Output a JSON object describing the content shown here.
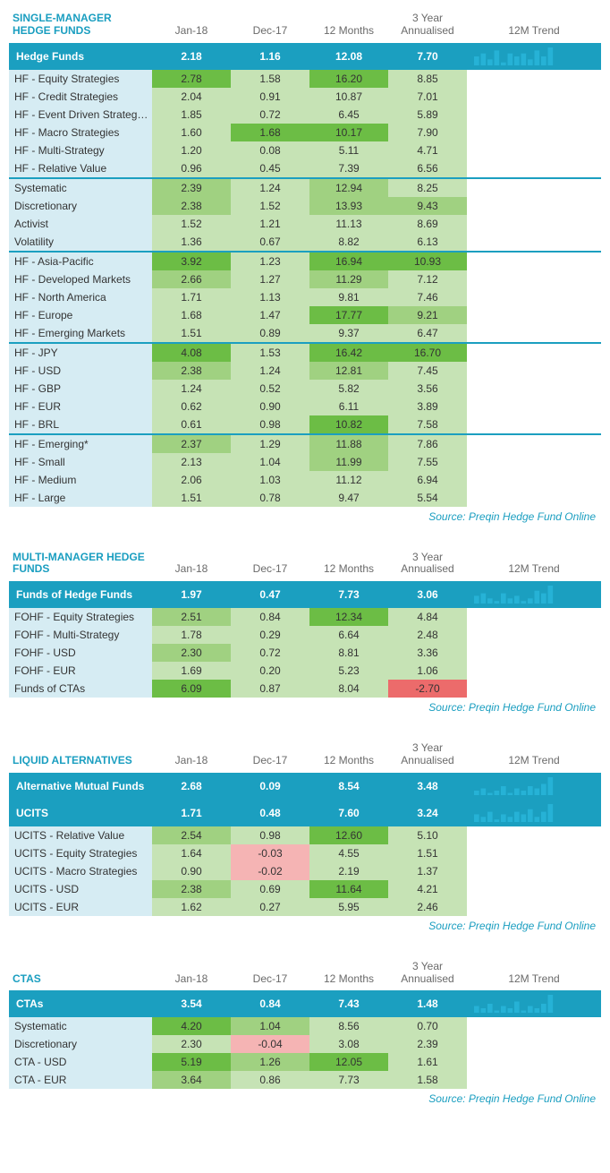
{
  "colors": {
    "accent": "#1b9fc0",
    "title": "#1a9ec0",
    "name_bg": "#d6ecf3",
    "g1": "#c6e3b5",
    "g2": "#a0d181",
    "g3": "#6cbd45",
    "r1": "#f5b4b4",
    "r2": "#ec6b6b",
    "spark": "#26b2d6"
  },
  "columns": [
    "Jan-18",
    "Dec-17",
    "12 Months",
    "3 Year\nAnnualised",
    "12M Trend"
  ],
  "source": "Source: Preqin Hedge Fund Online",
  "sections": [
    {
      "title": "SINGLE-MANAGER HEDGE FUNDS",
      "header": {
        "name": "Hedge Funds",
        "vals": [
          "2.18",
          "1.16",
          "12.08",
          "7.70"
        ],
        "spark": [
          3,
          4,
          2,
          5,
          1,
          4,
          3,
          4,
          2,
          5,
          3,
          6
        ]
      },
      "groups": [
        [
          {
            "name": "HF - Equity Strategies",
            "vals": [
              [
                "2.78",
                "g3"
              ],
              [
                "1.58",
                "g1"
              ],
              [
                "16.20",
                "g3"
              ],
              [
                "8.85",
                "g1"
              ]
            ]
          },
          {
            "name": "HF - Credit Strategies",
            "vals": [
              [
                "2.04",
                "g1"
              ],
              [
                "0.91",
                "g1"
              ],
              [
                "10.87",
                "g1"
              ],
              [
                "7.01",
                "g1"
              ]
            ]
          },
          {
            "name": "HF - Event Driven Strategies",
            "vals": [
              [
                "1.85",
                "g1"
              ],
              [
                "0.72",
                "g1"
              ],
              [
                "6.45",
                "g1"
              ],
              [
                "5.89",
                "g1"
              ]
            ]
          },
          {
            "name": "HF - Macro Strategies",
            "vals": [
              [
                "1.60",
                "g1"
              ],
              [
                "1.68",
                "g3"
              ],
              [
                "10.17",
                "g3"
              ],
              [
                "7.90",
                "g1"
              ]
            ]
          },
          {
            "name": "HF - Multi-Strategy",
            "vals": [
              [
                "1.20",
                "g1"
              ],
              [
                "0.08",
                "g1"
              ],
              [
                "5.11",
                "g1"
              ],
              [
                "4.71",
                "g1"
              ]
            ]
          },
          {
            "name": "HF - Relative Value",
            "vals": [
              [
                "0.96",
                "g1"
              ],
              [
                "0.45",
                "g1"
              ],
              [
                "7.39",
                "g1"
              ],
              [
                "6.56",
                "g1"
              ]
            ]
          }
        ],
        [
          {
            "name": "Systematic",
            "vals": [
              [
                "2.39",
                "g2"
              ],
              [
                "1.24",
                "g1"
              ],
              [
                "12.94",
                "g2"
              ],
              [
                "8.25",
                "g1"
              ]
            ]
          },
          {
            "name": "Discretionary",
            "vals": [
              [
                "2.38",
                "g2"
              ],
              [
                "1.52",
                "g1"
              ],
              [
                "13.93",
                "g2"
              ],
              [
                "9.43",
                "g2"
              ]
            ]
          },
          {
            "name": "Activist",
            "vals": [
              [
                "1.52",
                "g1"
              ],
              [
                "1.21",
                "g1"
              ],
              [
                "11.13",
                "g1"
              ],
              [
                "8.69",
                "g1"
              ]
            ]
          },
          {
            "name": "Volatility",
            "vals": [
              [
                "1.36",
                "g1"
              ],
              [
                "0.67",
                "g1"
              ],
              [
                "8.82",
                "g1"
              ],
              [
                "6.13",
                "g1"
              ]
            ]
          }
        ],
        [
          {
            "name": "HF - Asia-Pacific",
            "vals": [
              [
                "3.92",
                "g3"
              ],
              [
                "1.23",
                "g1"
              ],
              [
                "16.94",
                "g3"
              ],
              [
                "10.93",
                "g3"
              ]
            ]
          },
          {
            "name": "HF - Developed Markets",
            "vals": [
              [
                "2.66",
                "g2"
              ],
              [
                "1.27",
                "g1"
              ],
              [
                "11.29",
                "g2"
              ],
              [
                "7.12",
                "g1"
              ]
            ]
          },
          {
            "name": "HF - North America",
            "vals": [
              [
                "1.71",
                "g1"
              ],
              [
                "1.13",
                "g1"
              ],
              [
                "9.81",
                "g1"
              ],
              [
                "7.46",
                "g1"
              ]
            ]
          },
          {
            "name": "HF - Europe",
            "vals": [
              [
                "1.68",
                "g1"
              ],
              [
                "1.47",
                "g1"
              ],
              [
                "17.77",
                "g3"
              ],
              [
                "9.21",
                "g2"
              ]
            ]
          },
          {
            "name": "HF - Emerging Markets",
            "vals": [
              [
                "1.51",
                "g1"
              ],
              [
                "0.89",
                "g1"
              ],
              [
                "9.37",
                "g1"
              ],
              [
                "6.47",
                "g1"
              ]
            ]
          }
        ],
        [
          {
            "name": "HF - JPY",
            "vals": [
              [
                "4.08",
                "g3"
              ],
              [
                "1.53",
                "g1"
              ],
              [
                "16.42",
                "g3"
              ],
              [
                "16.70",
                "g3"
              ]
            ]
          },
          {
            "name": "HF - USD",
            "vals": [
              [
                "2.38",
                "g2"
              ],
              [
                "1.24",
                "g1"
              ],
              [
                "12.81",
                "g2"
              ],
              [
                "7.45",
                "g1"
              ]
            ]
          },
          {
            "name": "HF - GBP",
            "vals": [
              [
                "1.24",
                "g1"
              ],
              [
                "0.52",
                "g1"
              ],
              [
                "5.82",
                "g1"
              ],
              [
                "3.56",
                "g1"
              ]
            ]
          },
          {
            "name": "HF - EUR",
            "vals": [
              [
                "0.62",
                "g1"
              ],
              [
                "0.90",
                "g1"
              ],
              [
                "6.11",
                "g1"
              ],
              [
                "3.89",
                "g1"
              ]
            ]
          },
          {
            "name": "HF - BRL",
            "vals": [
              [
                "0.61",
                "g1"
              ],
              [
                "0.98",
                "g1"
              ],
              [
                "10.82",
                "g3"
              ],
              [
                "7.58",
                "g1"
              ]
            ]
          }
        ],
        [
          {
            "name": "HF - Emerging*",
            "vals": [
              [
                "2.37",
                "g2"
              ],
              [
                "1.29",
                "g1"
              ],
              [
                "11.88",
                "g2"
              ],
              [
                "7.86",
                "g1"
              ]
            ]
          },
          {
            "name": "HF - Small",
            "vals": [
              [
                "2.13",
                "g1"
              ],
              [
                "1.04",
                "g1"
              ],
              [
                "11.99",
                "g2"
              ],
              [
                "7.55",
                "g1"
              ]
            ]
          },
          {
            "name": "HF - Medium",
            "vals": [
              [
                "2.06",
                "g1"
              ],
              [
                "1.03",
                "g1"
              ],
              [
                "11.12",
                "g1"
              ],
              [
                "6.94",
                "g1"
              ]
            ]
          },
          {
            "name": "HF - Large",
            "vals": [
              [
                "1.51",
                "g1"
              ],
              [
                "0.78",
                "g1"
              ],
              [
                "9.47",
                "g1"
              ],
              [
                "5.54",
                "g1"
              ]
            ]
          }
        ]
      ]
    },
    {
      "title": "MULTI-MANAGER HEDGE FUNDS",
      "header": {
        "name": "Funds of Hedge Funds",
        "vals": [
          "1.97",
          "0.47",
          "7.73",
          "3.06"
        ],
        "spark": [
          3,
          4,
          2,
          1,
          4,
          2,
          3,
          1,
          2,
          5,
          4,
          7
        ]
      },
      "groups": [
        [
          {
            "name": "FOHF - Equity Strategies",
            "vals": [
              [
                "2.51",
                "g2"
              ],
              [
                "0.84",
                "g1"
              ],
              [
                "12.34",
                "g3"
              ],
              [
                "4.84",
                "g1"
              ]
            ]
          },
          {
            "name": "FOHF - Multi-Strategy",
            "vals": [
              [
                "1.78",
                "g1"
              ],
              [
                "0.29",
                "g1"
              ],
              [
                "6.64",
                "g1"
              ],
              [
                "2.48",
                "g1"
              ]
            ]
          },
          {
            "name": "FOHF - USD",
            "vals": [
              [
                "2.30",
                "g2"
              ],
              [
                "0.72",
                "g1"
              ],
              [
                "8.81",
                "g1"
              ],
              [
                "3.36",
                "g1"
              ]
            ]
          },
          {
            "name": "FOHF - EUR",
            "vals": [
              [
                "1.69",
                "g1"
              ],
              [
                "0.20",
                "g1"
              ],
              [
                "5.23",
                "g1"
              ],
              [
                "1.06",
                "g1"
              ]
            ]
          },
          {
            "name": "Funds of CTAs",
            "vals": [
              [
                "6.09",
                "g3"
              ],
              [
                "0.87",
                "g1"
              ],
              [
                "8.04",
                "g1"
              ],
              [
                "-2.70",
                "r2"
              ]
            ]
          }
        ]
      ]
    },
    {
      "title": "LIQUID ALTERNATIVES",
      "headers": [
        {
          "name": "Alternative Mutual Funds",
          "vals": [
            "2.68",
            "0.09",
            "8.54",
            "3.48"
          ],
          "spark": [
            2,
            3,
            1,
            2,
            4,
            1,
            3,
            2,
            4,
            3,
            5,
            8
          ]
        },
        {
          "name": "UCITS",
          "vals": [
            "1.71",
            "0.48",
            "7.60",
            "3.24"
          ],
          "spark": [
            3,
            2,
            4,
            1,
            3,
            2,
            4,
            3,
            5,
            2,
            4,
            7
          ]
        }
      ],
      "groups": [
        [
          {
            "name": "UCITS - Relative Value",
            "vals": [
              [
                "2.54",
                "g2"
              ],
              [
                "0.98",
                "g1"
              ],
              [
                "12.60",
                "g3"
              ],
              [
                "5.10",
                "g1"
              ]
            ]
          },
          {
            "name": "UCITS - Equity Strategies",
            "vals": [
              [
                "1.64",
                "g1"
              ],
              [
                "-0.03",
                "r1"
              ],
              [
                "4.55",
                "g1"
              ],
              [
                "1.51",
                "g1"
              ]
            ]
          },
          {
            "name": "UCITS - Macro Strategies",
            "vals": [
              [
                "0.90",
                "g1"
              ],
              [
                "-0.02",
                "r1"
              ],
              [
                "2.19",
                "g1"
              ],
              [
                "1.37",
                "g1"
              ]
            ]
          },
          {
            "name": "UCITS - USD",
            "vals": [
              [
                "2.38",
                "g2"
              ],
              [
                "0.69",
                "g1"
              ],
              [
                "11.64",
                "g3"
              ],
              [
                "4.21",
                "g1"
              ]
            ]
          },
          {
            "name": "UCITS - EUR",
            "vals": [
              [
                "1.62",
                "g1"
              ],
              [
                "0.27",
                "g1"
              ],
              [
                "5.95",
                "g1"
              ],
              [
                "2.46",
                "g1"
              ]
            ]
          }
        ]
      ]
    },
    {
      "title": "CTAS",
      "header": {
        "name": "CTAs",
        "vals": [
          "3.54",
          "0.84",
          "7.43",
          "1.48"
        ],
        "spark": [
          3,
          2,
          4,
          1,
          3,
          2,
          5,
          1,
          3,
          2,
          4,
          8
        ]
      },
      "groups": [
        [
          {
            "name": "Systematic",
            "vals": [
              [
                "4.20",
                "g3"
              ],
              [
                "1.04",
                "g2"
              ],
              [
                "8.56",
                "g1"
              ],
              [
                "0.70",
                "g1"
              ]
            ]
          },
          {
            "name": "Discretionary",
            "vals": [
              [
                "2.30",
                "g1"
              ],
              [
                "-0.04",
                "r1"
              ],
              [
                "3.08",
                "g1"
              ],
              [
                "2.39",
                "g1"
              ]
            ]
          },
          {
            "name": "CTA - USD",
            "vals": [
              [
                "5.19",
                "g3"
              ],
              [
                "1.26",
                "g2"
              ],
              [
                "12.05",
                "g3"
              ],
              [
                "1.61",
                "g1"
              ]
            ]
          },
          {
            "name": "CTA - EUR",
            "vals": [
              [
                "3.64",
                "g2"
              ],
              [
                "0.86",
                "g1"
              ],
              [
                "7.73",
                "g1"
              ],
              [
                "1.58",
                "g1"
              ]
            ]
          }
        ]
      ]
    }
  ]
}
